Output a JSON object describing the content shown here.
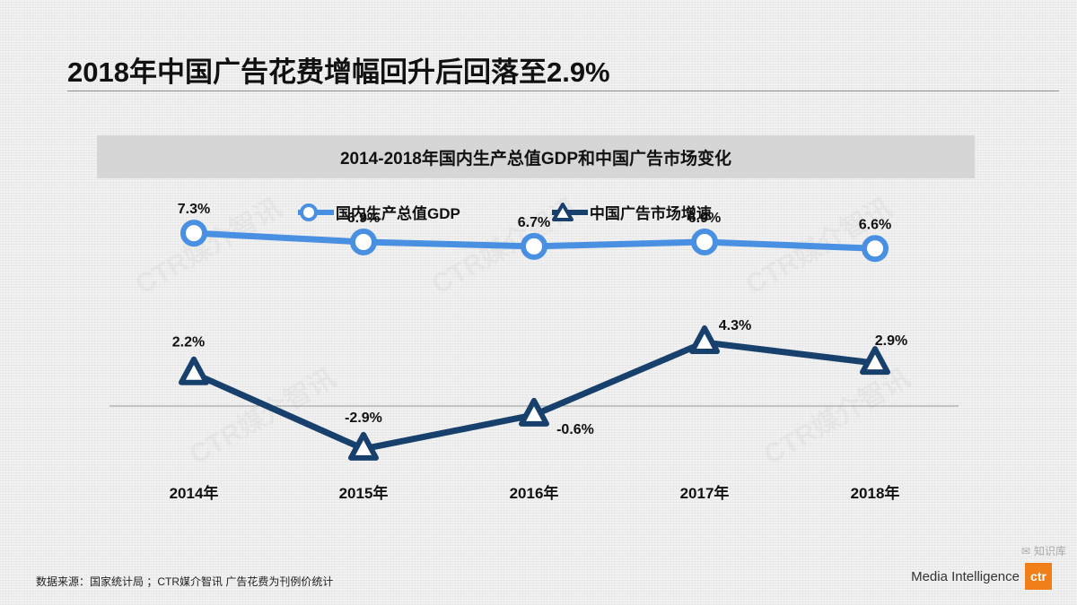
{
  "page": {
    "title": "2018年中国广告花费增幅回升后回落至2.9%",
    "source": "数据来源：国家统计局 ；CTR媒介智讯 广告花费为刊例价统计",
    "logo_text": "Media Intelligence",
    "logo_mark": "ctr",
    "watermark": "CTR媒介智讯",
    "social_mark": "知识库",
    "colors": {
      "gdp": "#4a90e2",
      "ad": "#17406d",
      "background": "#f2f2f2"
    }
  },
  "chart_data": {
    "type": "line",
    "title": "2014-2018年国内生产总值GDP和中国广告市场变化",
    "categories": [
      "2014年",
      "2015年",
      "2016年",
      "2017年",
      "2018年"
    ],
    "series": [
      {
        "name": "国内生产总值GDP",
        "values": [
          7.3,
          6.9,
          6.7,
          6.9,
          6.6
        ],
        "labels": [
          "7.3%",
          "6.9%",
          "6.7%",
          "6.9%",
          "6.6%"
        ],
        "marker": "circle"
      },
      {
        "name": "中国广告市场增速",
        "values": [
          2.2,
          -2.9,
          -0.6,
          4.3,
          2.9
        ],
        "labels": [
          "2.2%",
          "-2.9%",
          "-0.6%",
          "4.3%",
          "2.9%"
        ],
        "marker": "triangle"
      }
    ],
    "xlabel": "",
    "ylabel": "",
    "ylim": [
      -4,
      9
    ],
    "legend": "top-left",
    "grid": false
  }
}
